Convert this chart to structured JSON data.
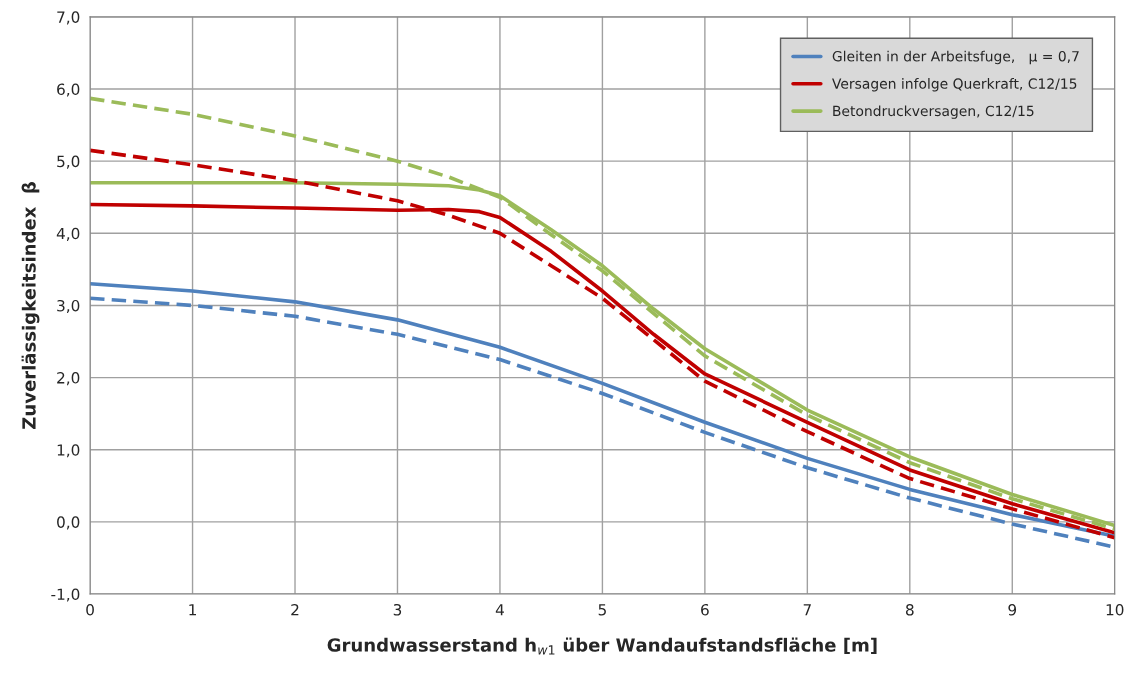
{
  "chart_data": {
    "type": "line",
    "xlabel": "Grundwasserstand h$_{w1}$ über Wandaufstandsfläche [m]",
    "ylabel": "Zuverlässigkeitsindex  β",
    "xlim": [
      0,
      10
    ],
    "ylim": [
      -1,
      7
    ],
    "xticks": [
      0,
      1,
      2,
      3,
      4,
      5,
      6,
      7,
      8,
      9,
      10
    ],
    "yticks": [
      {
        "value": -1,
        "label": "-1,0"
      },
      {
        "value": 0,
        "label": "0,0"
      },
      {
        "value": 1,
        "label": "1,0"
      },
      {
        "value": 2,
        "label": "2,0"
      },
      {
        "value": 3,
        "label": "3,0"
      },
      {
        "value": 4,
        "label": "4,0"
      },
      {
        "value": 5,
        "label": "5,0"
      },
      {
        "value": 6,
        "label": "6,0"
      },
      {
        "value": 7,
        "label": "7,0"
      }
    ],
    "grid": true,
    "legend": "top right",
    "marker": "none",
    "series": [
      {
        "name": "Gleiten in der Arbeitsfuge,   μ = 0,7",
        "color": "#4f81bd",
        "line_style": "solid",
        "x": [
          0,
          1,
          2,
          3,
          4,
          5,
          6,
          7,
          8,
          9,
          10
        ],
        "values": [
          3.3,
          3.2,
          3.05,
          2.8,
          2.42,
          1.92,
          1.38,
          0.88,
          0.45,
          0.1,
          -0.2
        ]
      },
      {
        "name": "Versagen infolge Querkraft, C12/15",
        "color": "#c00000",
        "line_style": "solid",
        "x": [
          0,
          1,
          2,
          3,
          3.5,
          3.8,
          4,
          4.5,
          5,
          5.5,
          6,
          7,
          8,
          9,
          10
        ],
        "values": [
          4.4,
          4.38,
          4.35,
          4.32,
          4.33,
          4.3,
          4.22,
          3.75,
          3.2,
          2.6,
          2.05,
          1.38,
          0.72,
          0.25,
          -0.15
        ]
      },
      {
        "name": "Betondruckversagen, C12/15",
        "color": "#9bbb59",
        "line_style": "solid",
        "x": [
          0,
          1,
          2,
          3,
          3.5,
          3.8,
          4,
          4.5,
          5,
          5.5,
          6,
          7,
          8,
          9,
          10
        ],
        "values": [
          4.7,
          4.7,
          4.7,
          4.68,
          4.66,
          4.6,
          4.52,
          4.05,
          3.55,
          2.95,
          2.4,
          1.55,
          0.9,
          0.38,
          -0.05
        ]
      },
      {
        "color": "#4f81bd",
        "line_style": "dashed",
        "x": [
          0,
          1,
          2,
          3,
          4,
          5,
          6,
          7,
          8,
          9,
          10
        ],
        "values": [
          3.1,
          3.0,
          2.85,
          2.6,
          2.25,
          1.78,
          1.24,
          0.75,
          0.33,
          -0.03,
          -0.35
        ]
      },
      {
        "color": "#c00000",
        "line_style": "dashed",
        "x": [
          0,
          1,
          2,
          3,
          3.5,
          4,
          4.5,
          5,
          6,
          7,
          8,
          9,
          10
        ],
        "values": [
          5.15,
          4.95,
          4.73,
          4.45,
          4.25,
          4.0,
          3.55,
          3.1,
          1.95,
          1.25,
          0.6,
          0.18,
          -0.22
        ]
      },
      {
        "color": "#9bbb59",
        "line_style": "dashed",
        "x": [
          0,
          1,
          2,
          3,
          3.5,
          4,
          4.5,
          5,
          6,
          7,
          8,
          9,
          10
        ],
        "values": [
          5.87,
          5.65,
          5.35,
          5.0,
          4.78,
          4.5,
          3.98,
          3.48,
          2.3,
          1.48,
          0.82,
          0.32,
          -0.1
        ]
      }
    ]
  }
}
